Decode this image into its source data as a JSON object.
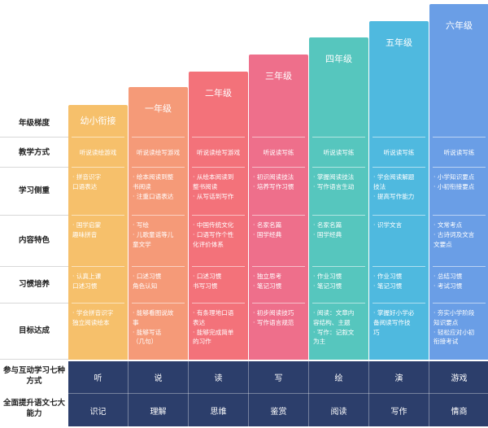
{
  "row_labels": {
    "grade_ladder": "年级梯度",
    "teaching_method": "教学方式",
    "learning_focus": "学习侧重",
    "content_features": "内容特色",
    "habit_building": "习惯培养",
    "goals": "目标达成",
    "interactive_methods": "参与互动学习七种方式",
    "abilities": "全面提升语文七大能力"
  },
  "columns": [
    {
      "grade": "幼小衔接",
      "color": "#f6c06b",
      "teaching": "听说读绘游戏",
      "focus": [
        "· 拼音识字",
        "  口语表达"
      ],
      "content": [
        "· 国学启蒙",
        "  趣味拼音"
      ],
      "habit": [
        "· 认真上课",
        "  口述习惯"
      ],
      "goal": [
        "· 学会拼音识字",
        "  独立阅读绘本"
      ],
      "interactive": "听",
      "ability": "识记"
    },
    {
      "grade": "一年级",
      "color": "#f59a78",
      "teaching": "听说读绘写游戏",
      "focus": [
        "· 绘本阅读到整",
        "  书阅读",
        "· 注重口语表达"
      ],
      "content": [
        "· 写绘",
        "· 儿歌童谣等儿",
        "  童文学"
      ],
      "habit": [
        "· 口述习惯",
        "  角色认知"
      ],
      "goal": [
        "· 能够看图说故",
        "  事",
        "· 能够写话",
        "  （几句）"
      ],
      "interactive": "说",
      "ability": "理解"
    },
    {
      "grade": "二年级",
      "color": "#f3727a",
      "teaching": "听说读绘写游戏",
      "focus": [
        "· 从绘本阅读到",
        "  整书阅读",
        "· 从写话到写作"
      ],
      "content": [
        "· 中国传统文化",
        "· 口语写作个性",
        "  化评价体系"
      ],
      "habit": [
        "· 口述习惯",
        "  书写习惯"
      ],
      "goal": [
        "· 有条理地口语",
        "  表达",
        "· 能够完成简单",
        "  的习作"
      ],
      "interactive": "读",
      "ability": "思维"
    },
    {
      "grade": "三年级",
      "color": "#ee6f8b",
      "teaching": "听说读写练",
      "focus": [
        "· 初识阅读技法",
        "· 培养写作习惯"
      ],
      "content": [
        "· 名家名篇",
        "· 国学经典"
      ],
      "habit": [
        "· 独立思考",
        "· 笔记习惯"
      ],
      "goal": [
        "· 初步阅读技巧",
        "· 写作语言规范"
      ],
      "interactive": "写",
      "ability": "鉴赏"
    },
    {
      "grade": "四年级",
      "color": "#56c6be",
      "teaching": "听说读写练",
      "focus": [
        "· 掌握阅读技法",
        "· 写作语言生动"
      ],
      "content": [
        "· 名家名篇",
        "· 国学经典"
      ],
      "habit": [
        "· 作业习惯",
        "· 笔记习惯"
      ],
      "goal": [
        "· 阅读：文章内",
        "  容结构、主题",
        "· 写作：记叙文",
        "  为主"
      ],
      "interactive": "绘",
      "ability": "阅读"
    },
    {
      "grade": "五年级",
      "color": "#4fb9df",
      "teaching": "听说读写练",
      "focus": [
        "· 学会阅读解题",
        "  技法",
        "· 提高写作能力"
      ],
      "content": [
        "· 识学文言"
      ],
      "habit": [
        "· 作业习惯",
        "· 笔记习惯"
      ],
      "goal": [
        "· 掌握好小学必",
        "  备阅读写作技",
        "  巧"
      ],
      "interactive": "演",
      "ability": "写作"
    },
    {
      "grade": "六年级",
      "color": "#6a9ee6",
      "teaching": "听说读写练",
      "focus": [
        "· 小学知识要点",
        "· 小初衔接要点"
      ],
      "content": [
        "· 文常考点",
        "· 古诗词及文言",
        "  文要点"
      ],
      "habit": [
        "· 总结习惯",
        "· 考试习惯"
      ],
      "goal": [
        "· 夯实小学阶段",
        "  知识要点",
        "· 轻松应对小初",
        "  衔接考试"
      ],
      "interactive": "游戏",
      "ability": "情商"
    }
  ],
  "colors": {
    "bottom_band": "#2c3e6b"
  }
}
